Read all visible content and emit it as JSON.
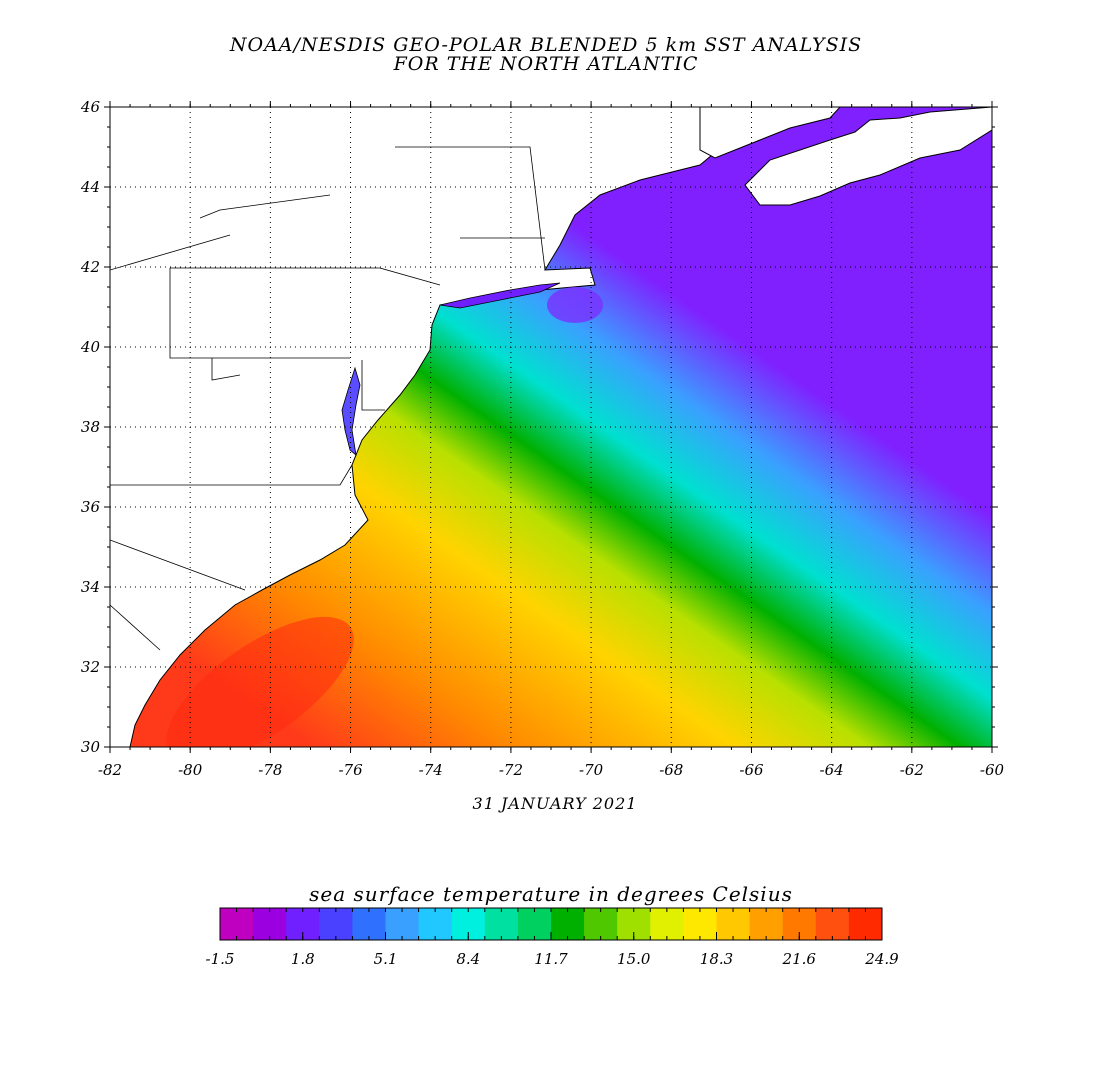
{
  "title": {
    "line1": "NOAA/NESDIS GEO-POLAR BLENDED 5 km SST ANALYSIS",
    "line2": "FOR THE NORTH ATLANTIC"
  },
  "date": "31 JANUARY 2021",
  "map": {
    "lon_range": [
      -82,
      -60
    ],
    "lat_range": [
      30,
      46
    ],
    "lon_ticks": [
      "-82",
      "-80",
      "-78",
      "-76",
      "-74",
      "-72",
      "-70",
      "-68",
      "-66",
      "-64",
      "-62",
      "-60"
    ],
    "lat_ticks": [
      "30",
      "32",
      "34",
      "36",
      "38",
      "40",
      "42",
      "44",
      "46"
    ],
    "grid": "dotted",
    "land_color": "#ffffff",
    "ocean_gradient_stops": [
      "#ff3a1a",
      "#ff8a00",
      "#ffd400",
      "#b8e000",
      "#00b000",
      "#00e0d0",
      "#3aa0ff",
      "#8020ff"
    ]
  },
  "colorbar": {
    "title": "sea surface temperature in degrees Celsius",
    "min": -1.5,
    "max": 24.9,
    "tick_labels": [
      "-1.5",
      "1.8",
      "5.1",
      "8.4",
      "11.7",
      "15.0",
      "18.3",
      "21.6",
      "24.9"
    ],
    "colors": [
      "#c000c0",
      "#9a00e0",
      "#7020ff",
      "#4a40ff",
      "#3070ff",
      "#3aa0ff",
      "#20c8ff",
      "#00f0e0",
      "#00e0a0",
      "#00d060",
      "#00b000",
      "#50c800",
      "#a0e000",
      "#e0f000",
      "#ffe800",
      "#ffc800",
      "#ffa000",
      "#ff7800",
      "#ff5010",
      "#ff2a00"
    ]
  }
}
